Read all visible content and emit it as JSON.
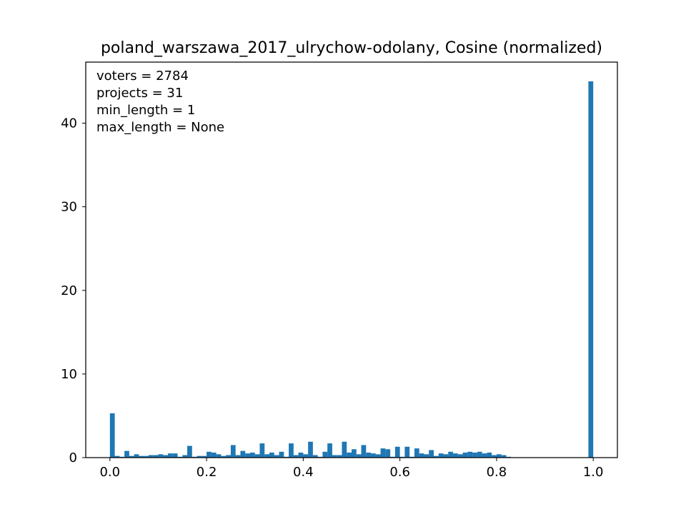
{
  "chart_data": {
    "type": "bar",
    "title": "poland_warszawa_2017_ulrychow-odolany, Cosine (normalized)",
    "xlabel": "",
    "ylabel": "",
    "xlim": [
      -0.05,
      1.05
    ],
    "ylim": [
      0,
      47.3
    ],
    "grid": false,
    "bar_color": "#1f77b4",
    "bin_width": 0.01,
    "x_ticks": [
      {
        "value": 0.0,
        "label": "0.0"
      },
      {
        "value": 0.2,
        "label": "0.2"
      },
      {
        "value": 0.4,
        "label": "0.4"
      },
      {
        "value": 0.6,
        "label": "0.6"
      },
      {
        "value": 0.8,
        "label": "0.8"
      },
      {
        "value": 1.0,
        "label": "1.0"
      }
    ],
    "y_ticks": [
      {
        "value": 0,
        "label": "0"
      },
      {
        "value": 10,
        "label": "10"
      },
      {
        "value": 20,
        "label": "20"
      },
      {
        "value": 30,
        "label": "30"
      },
      {
        "value": 40,
        "label": "40"
      }
    ],
    "annotations": [
      "voters = 2784",
      "projects = 31",
      "min_length = 1",
      "max_length = None"
    ],
    "bins": [
      0.0,
      0.01,
      0.02,
      0.03,
      0.04,
      0.05,
      0.06,
      0.07,
      0.08,
      0.09,
      0.1,
      0.11,
      0.12,
      0.13,
      0.14,
      0.15,
      0.16,
      0.17,
      0.18,
      0.19,
      0.2,
      0.21,
      0.22,
      0.23,
      0.24,
      0.25,
      0.26,
      0.27,
      0.28,
      0.29,
      0.3,
      0.31,
      0.32,
      0.33,
      0.34,
      0.35,
      0.36,
      0.37,
      0.38,
      0.39,
      0.4,
      0.41,
      0.42,
      0.43,
      0.44,
      0.45,
      0.46,
      0.47,
      0.48,
      0.49,
      0.5,
      0.51,
      0.52,
      0.53,
      0.54,
      0.55,
      0.56,
      0.57,
      0.58,
      0.59,
      0.6,
      0.61,
      0.62,
      0.63,
      0.64,
      0.65,
      0.66,
      0.67,
      0.68,
      0.69,
      0.7,
      0.71,
      0.72,
      0.73,
      0.74,
      0.75,
      0.76,
      0.77,
      0.78,
      0.79,
      0.8,
      0.81,
      0.82,
      0.99
    ],
    "values": [
      5.3,
      0.2,
      0.1,
      0.8,
      0.2,
      0.4,
      0.2,
      0.2,
      0.3,
      0.3,
      0.4,
      0.3,
      0.5,
      0.5,
      0.1,
      0.3,
      1.4,
      0.1,
      0.2,
      0.2,
      0.7,
      0.6,
      0.4,
      0.2,
      0.3,
      1.5,
      0.3,
      0.8,
      0.5,
      0.6,
      0.4,
      1.7,
      0.4,
      0.6,
      0.3,
      0.7,
      0.1,
      1.7,
      0.3,
      0.6,
      0.4,
      1.9,
      0.3,
      0.1,
      0.7,
      1.7,
      0.3,
      0.3,
      1.9,
      0.6,
      1.0,
      0.4,
      1.5,
      0.6,
      0.5,
      0.4,
      1.1,
      1.0,
      0.1,
      1.3,
      0.1,
      1.3,
      0.1,
      1.1,
      0.5,
      0.4,
      0.9,
      0.2,
      0.5,
      0.4,
      0.7,
      0.5,
      0.4,
      0.6,
      0.7,
      0.6,
      0.7,
      0.5,
      0.6,
      0.3,
      0.4,
      0.3,
      0.1,
      45.0
    ]
  }
}
